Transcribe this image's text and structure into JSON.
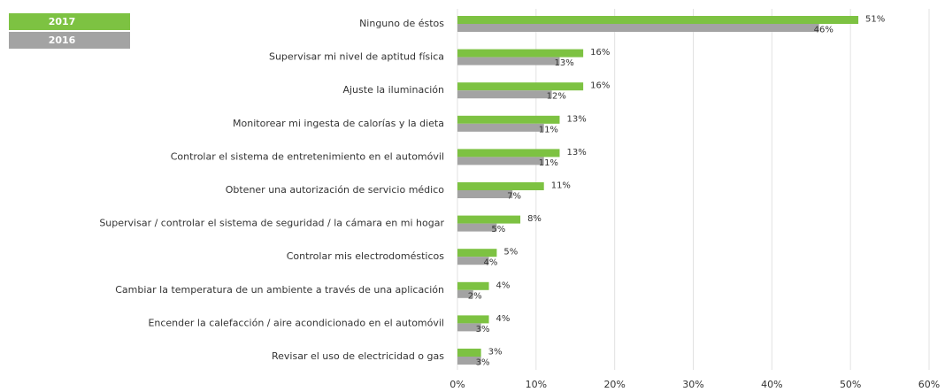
{
  "chart_data": {
    "type": "hbar",
    "categories": [
      "Ninguno de éstos",
      "Supervisar mi nivel de aptitud física",
      "Ajuste la iluminación",
      "Monitorear mi ingesta de calorías y la dieta",
      "Controlar el sistema de entretenimiento en el automóvil",
      "Obtener una autorización de servicio médico",
      "Supervisar / controlar el sistema de seguridad / la cámara en mi hogar",
      "Controlar mis electrodomésticos",
      "Cambiar la temperatura de un ambiente a través de una aplicación",
      "Encender la calefacción / aire acondicionado en el automóvil",
      "Revisar el uso de electricidad o gas"
    ],
    "series": [
      {
        "name": "2017",
        "color": "#7dc242",
        "values": [
          51,
          16,
          16,
          13,
          13,
          11,
          8,
          5,
          4,
          4,
          3
        ],
        "value_labels": [
          "51%",
          "16%",
          "16%",
          "13%",
          "13%",
          "11%",
          "8%",
          "5%",
          "4%",
          "4%",
          "3%"
        ]
      },
      {
        "name": "2016",
        "color": "#a3a3a3",
        "values": [
          46,
          13,
          12,
          11,
          11,
          7,
          5,
          4,
          2,
          3,
          3
        ],
        "value_labels": [
          "46%",
          "13%",
          "12%",
          "11%",
          "11%",
          "7%",
          "5%",
          "4%",
          "2%",
          "3%",
          "3%"
        ]
      }
    ],
    "xlim": [
      0,
      60
    ],
    "xticks": [
      {
        "value": 0,
        "label": "0%"
      },
      {
        "value": 10,
        "label": "10%"
      },
      {
        "value": 20,
        "label": "20%"
      },
      {
        "value": 30,
        "label": "30%"
      },
      {
        "value": 40,
        "label": "40%"
      },
      {
        "value": 50,
        "label": "50%"
      },
      {
        "value": 60,
        "label": "60%"
      }
    ],
    "grid": true
  }
}
